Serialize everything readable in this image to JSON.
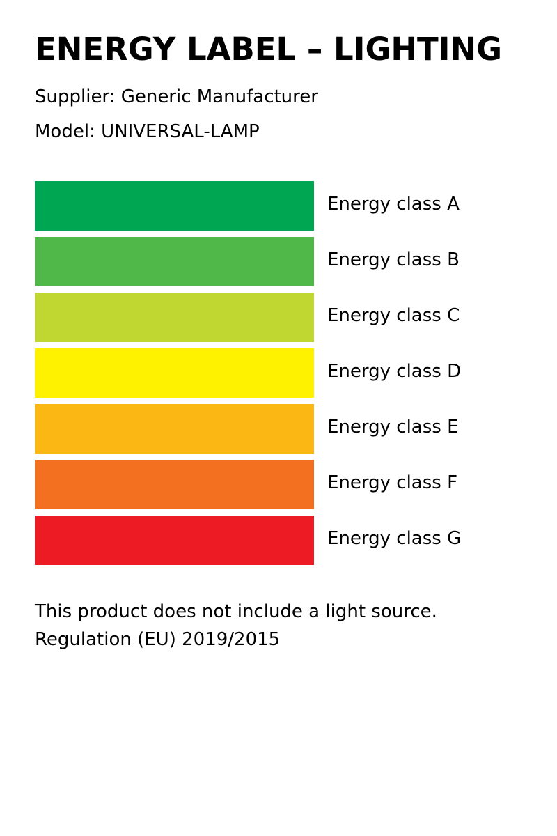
{
  "header": {
    "title": "ENERGY LABEL – LIGHTING",
    "supplier": "Supplier: Generic Manufacturer",
    "model": "Model: UNIVERSAL-LAMP"
  },
  "classes": [
    {
      "label": "Energy class A",
      "color": "#00a651"
    },
    {
      "label": "Energy class B",
      "color": "#50b848"
    },
    {
      "label": "Energy class C",
      "color": "#bfd730"
    },
    {
      "label": "Energy class D",
      "color": "#fff200"
    },
    {
      "label": "Energy class E",
      "color": "#fbb814"
    },
    {
      "label": "Energy class F",
      "color": "#f37021"
    },
    {
      "label": "Energy class G",
      "color": "#ed1c24"
    }
  ],
  "footer": {
    "note": "This product does not include a light source.",
    "regulation": "Regulation (EU) 2019/2015"
  }
}
